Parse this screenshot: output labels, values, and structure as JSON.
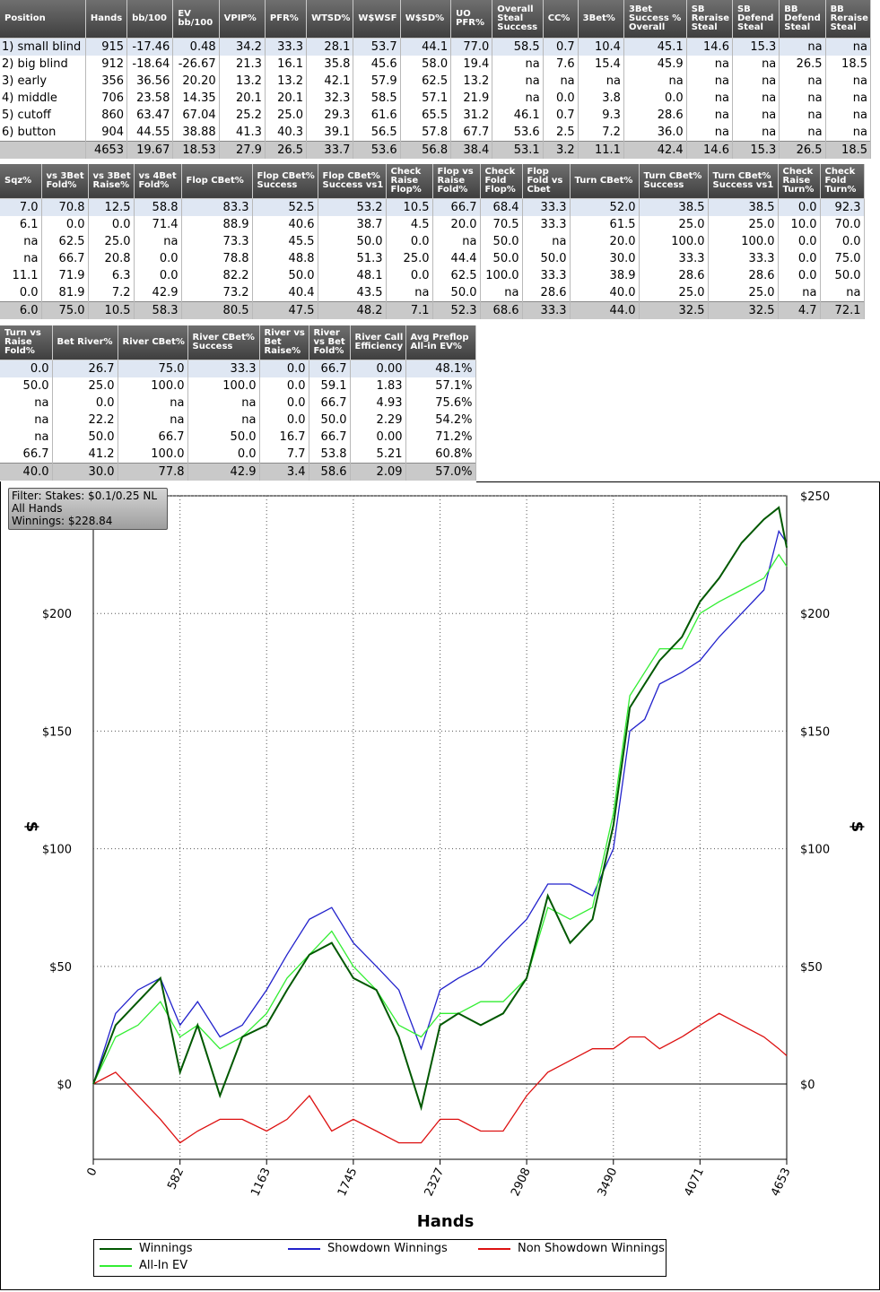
{
  "table1": {
    "headers": [
      "Position",
      "Hands",
      "bb/100",
      "EV bb/100",
      "VPIP%",
      "PFR%",
      "WTSD%",
      "W$WSF",
      "W$SD%",
      "UO PFR%",
      "Overall Steal Success",
      "CC%",
      "3Bet%",
      "3Bet Success % Overall",
      "SB Reraise Steal",
      "SB Defend Steal",
      "BB Defend Steal",
      "BB Reraise Steal"
    ],
    "rows": [
      [
        "1) small blind",
        "915",
        "-17.46",
        "0.48",
        "34.2",
        "33.3",
        "28.1",
        "53.7",
        "44.1",
        "77.0",
        "58.5",
        "0.7",
        "10.4",
        "45.1",
        "14.6",
        "15.3",
        "na",
        "na"
      ],
      [
        "2) big blind",
        "912",
        "-18.64",
        "-26.67",
        "21.3",
        "16.1",
        "35.8",
        "45.6",
        "58.0",
        "19.4",
        "na",
        "7.6",
        "15.4",
        "45.9",
        "na",
        "na",
        "26.5",
        "18.5"
      ],
      [
        "3) early",
        "356",
        "36.56",
        "20.20",
        "13.2",
        "13.2",
        "42.1",
        "57.9",
        "62.5",
        "13.2",
        "na",
        "na",
        "na",
        "na",
        "na",
        "na",
        "na",
        "na"
      ],
      [
        "4) middle",
        "706",
        "23.58",
        "14.35",
        "20.1",
        "20.1",
        "32.3",
        "58.5",
        "57.1",
        "21.9",
        "na",
        "0.0",
        "3.8",
        "0.0",
        "na",
        "na",
        "na",
        "na"
      ],
      [
        "5) cutoff",
        "860",
        "63.47",
        "67.04",
        "25.2",
        "25.0",
        "29.3",
        "61.6",
        "65.5",
        "31.2",
        "46.1",
        "0.7",
        "9.3",
        "28.6",
        "na",
        "na",
        "na",
        "na"
      ],
      [
        "6) button",
        "904",
        "44.55",
        "38.88",
        "41.3",
        "40.3",
        "39.1",
        "56.5",
        "57.8",
        "67.7",
        "53.6",
        "2.5",
        "7.2",
        "36.0",
        "na",
        "na",
        "na",
        "na"
      ]
    ],
    "total": [
      "",
      "4653",
      "19.67",
      "18.53",
      "27.9",
      "26.5",
      "33.7",
      "53.6",
      "56.8",
      "38.4",
      "53.1",
      "3.2",
      "11.1",
      "42.4",
      "14.6",
      "15.3",
      "26.5",
      "18.5"
    ]
  },
  "table2": {
    "headers": [
      "Sqz%",
      "vs 3Bet Fold%",
      "vs 3Bet Raise%",
      "vs 4Bet Fold%",
      "Flop CBet%",
      "Flop CBet% Success",
      "Flop CBet% Success vs1",
      "Check Raise Flop%",
      "Flop vs Raise Fold%",
      "Check Fold Flop%",
      "Flop Fold vs Cbet",
      "Turn CBet%",
      "Turn CBet% Success",
      "Turn CBet% Success vs1",
      "Check Raise Turn%",
      "Check Fold Turn%"
    ],
    "rows": [
      [
        "7.0",
        "70.8",
        "12.5",
        "58.8",
        "83.3",
        "52.5",
        "53.2",
        "10.5",
        "66.7",
        "68.4",
        "33.3",
        "52.0",
        "38.5",
        "38.5",
        "0.0",
        "92.3"
      ],
      [
        "6.1",
        "0.0",
        "0.0",
        "71.4",
        "88.9",
        "40.6",
        "38.7",
        "4.5",
        "20.0",
        "70.5",
        "33.3",
        "61.5",
        "25.0",
        "25.0",
        "10.0",
        "70.0"
      ],
      [
        "na",
        "62.5",
        "25.0",
        "na",
        "73.3",
        "45.5",
        "50.0",
        "0.0",
        "na",
        "50.0",
        "na",
        "20.0",
        "100.0",
        "100.0",
        "0.0",
        "0.0"
      ],
      [
        "na",
        "66.7",
        "20.8",
        "0.0",
        "78.8",
        "48.8",
        "51.3",
        "25.0",
        "44.4",
        "50.0",
        "50.0",
        "30.0",
        "33.3",
        "33.3",
        "0.0",
        "75.0"
      ],
      [
        "11.1",
        "71.9",
        "6.3",
        "0.0",
        "82.2",
        "50.0",
        "48.1",
        "0.0",
        "62.5",
        "100.0",
        "33.3",
        "38.9",
        "28.6",
        "28.6",
        "0.0",
        "50.0"
      ],
      [
        "0.0",
        "81.9",
        "7.2",
        "42.9",
        "73.2",
        "40.4",
        "43.5",
        "na",
        "50.0",
        "na",
        "28.6",
        "40.0",
        "25.0",
        "25.0",
        "na",
        "na"
      ]
    ],
    "total": [
      "6.0",
      "75.0",
      "10.5",
      "58.3",
      "80.5",
      "47.5",
      "48.2",
      "7.1",
      "52.3",
      "68.6",
      "33.3",
      "44.0",
      "32.5",
      "32.5",
      "4.7",
      "72.1"
    ]
  },
  "table3": {
    "headers": [
      "Turn vs Raise Fold%",
      "Bet River%",
      "River CBet%",
      "River CBet% Success",
      "River vs Bet Raise%",
      "River vs Bet Fold%",
      "River Call Efficiency",
      "Avg Preflop All-in EV%"
    ],
    "rows": [
      [
        "0.0",
        "26.7",
        "75.0",
        "33.3",
        "0.0",
        "66.7",
        "0.00",
        "48.1%"
      ],
      [
        "50.0",
        "25.0",
        "100.0",
        "100.0",
        "0.0",
        "59.1",
        "1.83",
        "57.1%"
      ],
      [
        "na",
        "0.0",
        "na",
        "na",
        "0.0",
        "66.7",
        "4.93",
        "75.6%"
      ],
      [
        "na",
        "22.2",
        "na",
        "na",
        "0.0",
        "50.0",
        "2.29",
        "54.2%"
      ],
      [
        "na",
        "50.0",
        "66.7",
        "50.0",
        "16.7",
        "66.7",
        "0.00",
        "71.2%"
      ],
      [
        "66.7",
        "41.2",
        "100.0",
        "0.0",
        "7.7",
        "53.8",
        "5.21",
        "60.8%"
      ]
    ],
    "total": [
      "40.0",
      "30.0",
      "77.8",
      "42.9",
      "3.4",
      "58.6",
      "2.09",
      "57.0%"
    ]
  },
  "filter": {
    "line1": "Filter: Stakes: $0.1/0.25 NL",
    "line2": "All Hands",
    "line3": "Winnings: $228.84"
  },
  "chart_data": {
    "type": "line",
    "xlabel": "Hands",
    "ylabel": "$",
    "xlim": [
      0,
      4653
    ],
    "ylim": [
      -32,
      250
    ],
    "x_ticks": [
      "0",
      "582",
      "1163",
      "1745",
      "2327",
      "2908",
      "3490",
      "4071",
      "4653"
    ],
    "y_ticks": [
      "$0",
      "$50",
      "$100",
      "$150",
      "$200",
      "$250"
    ],
    "grid": true,
    "legend_position": "bottom",
    "colors": {
      "winnings": "#005800",
      "allin_ev": "#33ee33",
      "showdown": "#2222cc",
      "non_showdown": "#dd1111"
    },
    "x": [
      0,
      150,
      300,
      450,
      582,
      700,
      850,
      1000,
      1163,
      1300,
      1450,
      1600,
      1745,
      1900,
      2050,
      2200,
      2327,
      2450,
      2600,
      2750,
      2908,
      3050,
      3200,
      3350,
      3490,
      3600,
      3700,
      3800,
      3950,
      4071,
      4200,
      4350,
      4500,
      4600,
      4653
    ],
    "series": [
      {
        "name": "Winnings",
        "values": [
          0,
          25,
          35,
          45,
          5,
          25,
          -5,
          20,
          25,
          40,
          55,
          60,
          45,
          40,
          20,
          -10,
          25,
          30,
          25,
          30,
          45,
          80,
          60,
          70,
          110,
          160,
          170,
          180,
          190,
          205,
          215,
          230,
          240,
          245,
          228
        ]
      },
      {
        "name": "All-In EV",
        "values": [
          0,
          20,
          25,
          35,
          20,
          25,
          15,
          20,
          30,
          45,
          55,
          65,
          50,
          40,
          25,
          20,
          30,
          30,
          35,
          35,
          45,
          75,
          70,
          75,
          115,
          165,
          175,
          185,
          185,
          200,
          205,
          210,
          215,
          225,
          220
        ]
      },
      {
        "name": "Showdown Winnings",
        "values": [
          0,
          30,
          40,
          45,
          25,
          35,
          20,
          25,
          40,
          55,
          70,
          75,
          60,
          50,
          40,
          15,
          40,
          45,
          50,
          60,
          70,
          85,
          85,
          80,
          100,
          150,
          155,
          170,
          175,
          180,
          190,
          200,
          210,
          235,
          230
        ]
      },
      {
        "name": "Non Showdown Winnings",
        "values": [
          0,
          5,
          -5,
          -15,
          -25,
          -20,
          -15,
          -15,
          -20,
          -15,
          -5,
          -20,
          -15,
          -20,
          -25,
          -25,
          -15,
          -15,
          -20,
          -20,
          -5,
          5,
          10,
          15,
          15,
          20,
          20,
          15,
          20,
          25,
          30,
          25,
          20,
          15,
          12
        ]
      }
    ]
  }
}
